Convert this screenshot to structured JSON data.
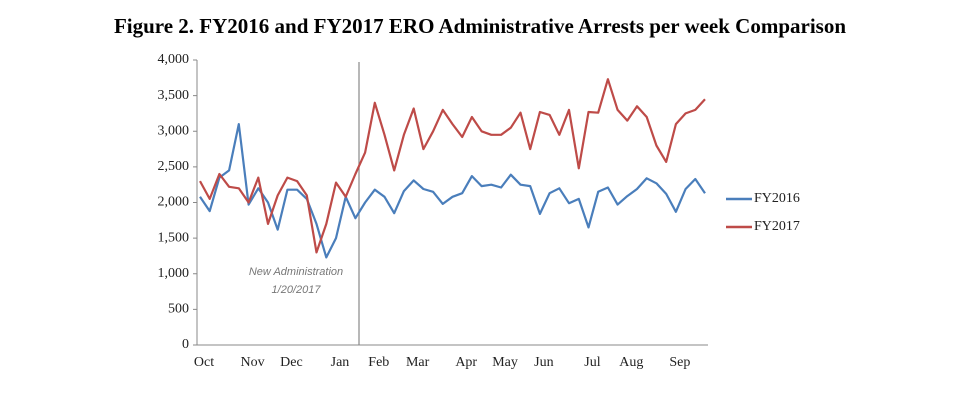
{
  "chart_data": {
    "type": "line",
    "title": "Figure 2. FY2016 and FY2017 ERO Administrative Arrests per week Comparison",
    "annotation": [
      "New Administration",
      "1/20/2017"
    ],
    "categories": [
      "Oct",
      null,
      null,
      null,
      null,
      "Nov",
      null,
      null,
      null,
      "Dec",
      null,
      null,
      null,
      null,
      "Jan",
      null,
      null,
      null,
      "Feb",
      null,
      null,
      null,
      "Mar",
      null,
      null,
      null,
      null,
      "Apr",
      null,
      null,
      null,
      "May",
      null,
      null,
      null,
      "Jun",
      null,
      null,
      null,
      null,
      "Jul",
      null,
      null,
      null,
      "Aug",
      null,
      null,
      null,
      null,
      "Sep",
      null,
      null,
      null
    ],
    "series": [
      {
        "name": "FY2016",
        "color": "#4a7ebb",
        "values": [
          2080,
          1880,
          2350,
          2450,
          3100,
          1970,
          2200,
          2000,
          1620,
          2180,
          2180,
          2050,
          1700,
          1230,
          1500,
          2080,
          1780,
          2000,
          2180,
          2080,
          1850,
          2160,
          2310,
          2190,
          2150,
          1980,
          2080,
          2130,
          2370,
          2230,
          2250,
          2210,
          2390,
          2250,
          2230,
          1840,
          2130,
          2200,
          1990,
          2050,
          1650,
          2150,
          2210,
          1970,
          2090,
          2190,
          2340,
          2270,
          2120,
          1870,
          2190,
          2330,
          2130
        ]
      },
      {
        "name": "FY2017",
        "color": "#be4b48",
        "values": [
          2300,
          2050,
          2400,
          2220,
          2200,
          2000,
          2350,
          1700,
          2100,
          2350,
          2300,
          2100,
          1300,
          1700,
          2280,
          2080,
          2400,
          2700,
          3400,
          2950,
          2450,
          2950,
          3320,
          2750,
          3000,
          3300,
          3100,
          2920,
          3200,
          3000,
          2950,
          2950,
          3050,
          3260,
          2750,
          3270,
          3230,
          2950,
          3300,
          2480,
          3270,
          3260,
          3730,
          3300,
          3150,
          3350,
          3200,
          2800,
          2570,
          3100,
          3250,
          3300,
          3450
        ]
      }
    ],
    "ylim": [
      0,
      4000
    ],
    "yticks": [
      0,
      500,
      {
        "value": 1000,
        "label": "1,000"
      },
      {
        "value": 1500,
        "label": "1,500"
      },
      {
        "value": 2000,
        "label": "2,000"
      },
      {
        "value": 2500,
        "label": "2,500"
      },
      {
        "value": 3000,
        "label": "3,000"
      },
      {
        "value": 3500,
        "label": "3,500"
      },
      {
        "value": 4000,
        "label": "4,000"
      }
    ],
    "grid": false,
    "legend": "right"
  }
}
